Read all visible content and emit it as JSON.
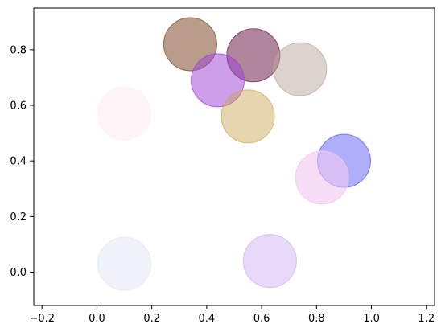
{
  "chart_data": {
    "type": "scatter",
    "title": "",
    "xlabel": "",
    "ylabel": "",
    "xlim": [
      -0.23,
      1.23
    ],
    "ylim": [
      -0.12,
      0.95
    ],
    "grid": false,
    "x_ticks": [
      -0.2,
      0.0,
      0.2,
      0.4,
      0.6,
      0.8,
      1.0,
      1.2
    ],
    "x_tick_labels": [
      "−0.2",
      "0.0",
      "0.2",
      "0.4",
      "0.6",
      "0.8",
      "1.0",
      "1.2"
    ],
    "y_ticks": [
      0.0,
      0.2,
      0.4,
      0.6,
      0.8
    ],
    "y_tick_labels": [
      "0.0",
      "0.2",
      "0.4",
      "0.6",
      "0.8"
    ],
    "points": [
      {
        "x": 0.34,
        "y": 0.82,
        "color": "#8b5a3c",
        "alpha": 0.6
      },
      {
        "x": 0.57,
        "y": 0.78,
        "color": "#7a3558",
        "alpha": 0.6
      },
      {
        "x": 0.74,
        "y": 0.73,
        "color": "#b9a79f",
        "alpha": 0.5
      },
      {
        "x": 0.44,
        "y": 0.69,
        "color": "#9b3fd8",
        "alpha": 0.5
      },
      {
        "x": 0.55,
        "y": 0.56,
        "color": "#c8a450",
        "alpha": 0.45
      },
      {
        "x": 0.1,
        "y": 0.57,
        "color": "#fff0f5",
        "alpha": 0.7
      },
      {
        "x": 0.9,
        "y": 0.4,
        "color": "#4d4bf5",
        "alpha": 0.45
      },
      {
        "x": 0.82,
        "y": 0.34,
        "color": "#f1c8f0",
        "alpha": 0.6
      },
      {
        "x": 0.1,
        "y": 0.03,
        "color": "#e2e5f3",
        "alpha": 0.5
      },
      {
        "x": 0.63,
        "y": 0.04,
        "color": "#cda9f5",
        "alpha": 0.45
      }
    ]
  }
}
